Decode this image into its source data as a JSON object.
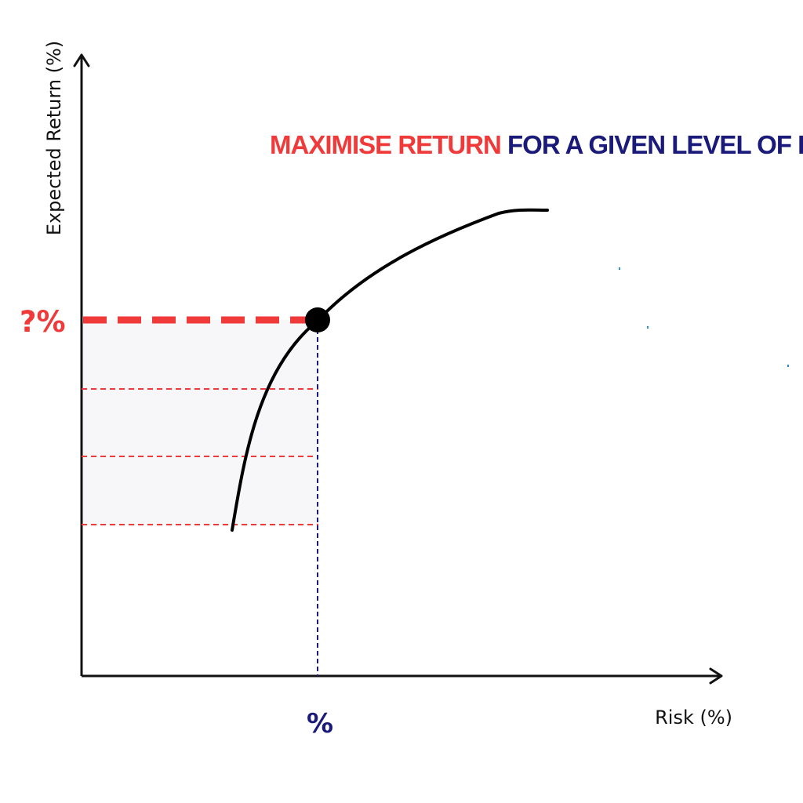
{
  "title": {
    "part1": "MAXIMISE RETURN",
    "part2": " FOR A GIVEN LEVEL OF RISK",
    "part3": "."
  },
  "axes": {
    "y_label": "Expected Return (%)",
    "x_label": "Risk (%)"
  },
  "markers": {
    "return_label": "?%",
    "risk_label": "%"
  },
  "colors": {
    "accent_red": "#f03a3a",
    "navy": "#1a1a7a",
    "curve": "#000000",
    "axis": "#111111",
    "speck": "#2a8ad0"
  }
}
